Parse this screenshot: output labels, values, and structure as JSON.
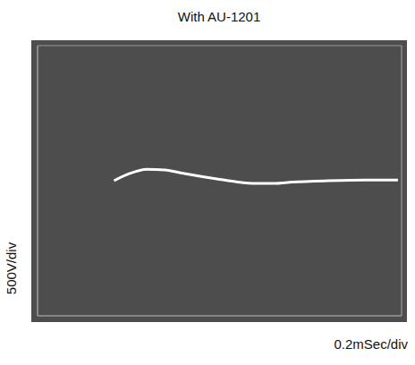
{
  "chart_data": {
    "type": "line",
    "title": "With AU-1201",
    "xlabel": "0.2mSec/div",
    "ylabel": "500V/div",
    "x": [
      0.42,
      0.5,
      0.6,
      0.7,
      0.8,
      1.0,
      1.1,
      1.2,
      1.3,
      1.4,
      1.6,
      1.8,
      1.98
    ],
    "values": [
      0,
      100,
      170,
      160,
      110,
      20,
      -20,
      -40,
      -40,
      -20,
      0,
      10,
      10
    ],
    "color": "#ffffff",
    "xlim": [
      0,
      2
    ],
    "ylim": [
      -2000,
      2000
    ],
    "xticks": [
      0,
      0.2,
      0.4,
      0.6,
      0.8,
      1.0,
      1.2,
      1.4,
      1.6,
      1.8,
      2.0
    ],
    "yticks": [
      -2000,
      -1500,
      -1000,
      -500,
      0,
      500,
      1000,
      1500,
      2000
    ],
    "grid": true,
    "tick_labels": false
  }
}
